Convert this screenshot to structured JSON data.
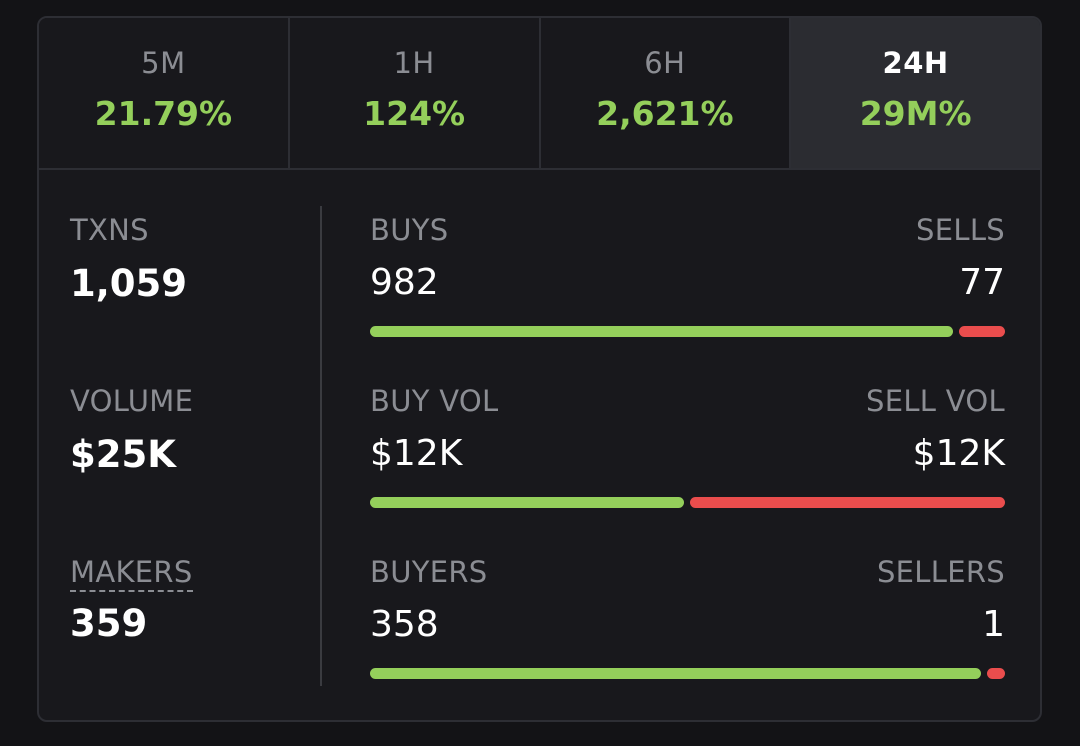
{
  "tabs": [
    {
      "label": "5M",
      "value": "21.79%",
      "active": false
    },
    {
      "label": "1H",
      "value": "124%",
      "active": false
    },
    {
      "label": "6H",
      "value": "2,621%",
      "active": false
    },
    {
      "label": "24H",
      "value": "29M%",
      "active": true
    }
  ],
  "stats": {
    "txns": {
      "label": "TXNS",
      "value": "1,059"
    },
    "volume": {
      "label": "VOLUME",
      "value": "$25K"
    },
    "makers": {
      "label": "MAKERS",
      "value": "359"
    }
  },
  "ratios": {
    "buys_sells": {
      "left_label": "BUYS",
      "right_label": "SELLS",
      "left_value": "982",
      "right_value": "77",
      "buy_fraction": 0.927
    },
    "volume": {
      "left_label": "BUY VOL",
      "right_label": "SELL VOL",
      "left_value": "$12K",
      "right_value": "$12K",
      "buy_fraction": 0.5
    },
    "participants": {
      "left_label": "BUYERS",
      "right_label": "SELLERS",
      "left_value": "358",
      "right_value": "1",
      "buy_fraction": 0.997
    }
  },
  "colors": {
    "buy": "#94cf5b",
    "sell": "#ea4d4d",
    "muted": "#8b8d93",
    "card_bg": "#18181c",
    "active_tab_bg": "#2b2c31"
  }
}
